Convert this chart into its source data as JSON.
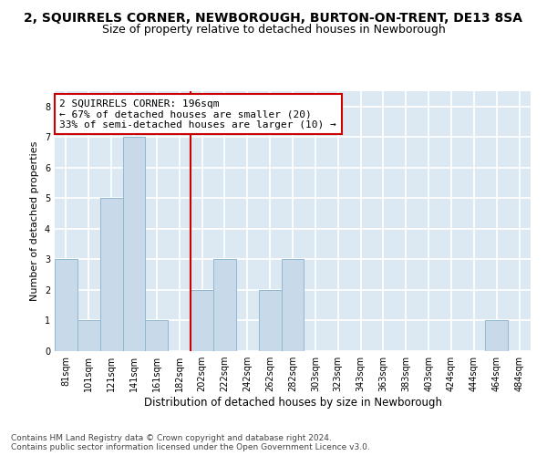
{
  "title": "2, SQUIRRELS CORNER, NEWBOROUGH, BURTON-ON-TRENT, DE13 8SA",
  "subtitle": "Size of property relative to detached houses in Newborough",
  "xlabel": "Distribution of detached houses by size in Newborough",
  "ylabel": "Number of detached properties",
  "bin_labels": [
    "81sqm",
    "101sqm",
    "121sqm",
    "141sqm",
    "161sqm",
    "182sqm",
    "202sqm",
    "222sqm",
    "242sqm",
    "262sqm",
    "282sqm",
    "303sqm",
    "323sqm",
    "343sqm",
    "363sqm",
    "383sqm",
    "403sqm",
    "424sqm",
    "444sqm",
    "464sqm",
    "484sqm"
  ],
  "bar_heights": [
    3,
    1,
    5,
    7,
    1,
    0,
    2,
    3,
    0,
    2,
    3,
    0,
    0,
    0,
    0,
    0,
    0,
    0,
    0,
    1,
    0
  ],
  "bar_color": "#c8daea",
  "bar_edgecolor": "#90b8d0",
  "vline_x_label_index": 6,
  "vline_color": "#cc0000",
  "annotation_text": "2 SQUIRRELS CORNER: 196sqm\n← 67% of detached houses are smaller (20)\n33% of semi-detached houses are larger (10) →",
  "annotation_box_facecolor": "white",
  "annotation_box_edgecolor": "#cc0000",
  "ylim": [
    0,
    8.5
  ],
  "yticks": [
    0,
    1,
    2,
    3,
    4,
    5,
    6,
    7,
    8
  ],
  "background_color": "#dce8f2",
  "footer_text": "Contains HM Land Registry data © Crown copyright and database right 2024.\nContains public sector information licensed under the Open Government Licence v3.0.",
  "title_fontsize": 10,
  "subtitle_fontsize": 9,
  "xlabel_fontsize": 8.5,
  "ylabel_fontsize": 8,
  "tick_fontsize": 7,
  "annotation_fontsize": 8,
  "footer_fontsize": 6.5
}
